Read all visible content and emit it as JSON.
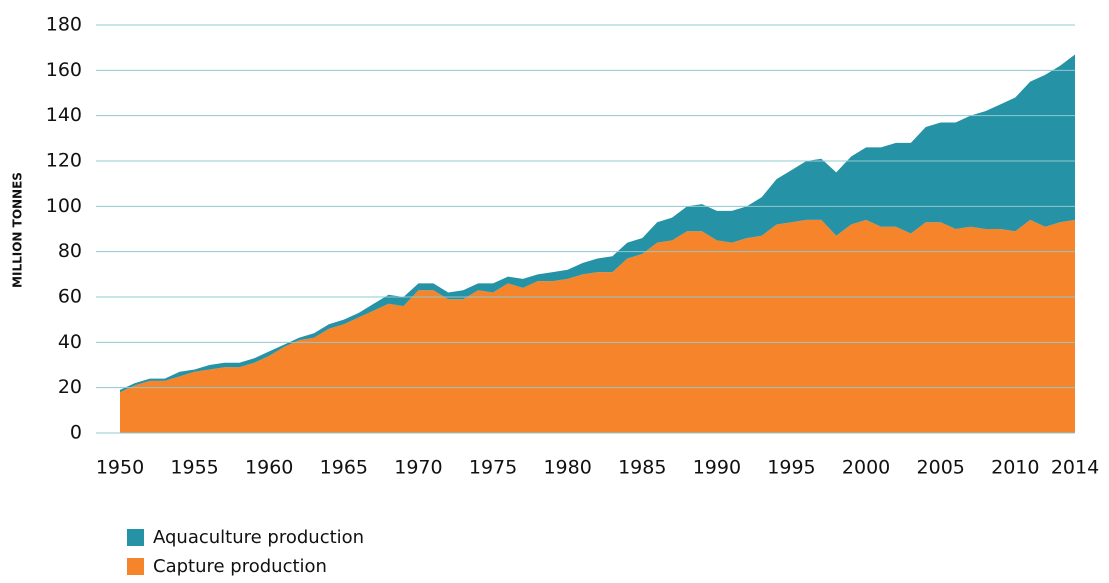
{
  "chart_data": {
    "type": "stacked_area",
    "y_label": "MILLION TONNES",
    "x": [
      1950,
      1951,
      1952,
      1953,
      1954,
      1955,
      1956,
      1957,
      1958,
      1959,
      1960,
      1961,
      1962,
      1963,
      1964,
      1965,
      1966,
      1967,
      1968,
      1969,
      1970,
      1971,
      1972,
      1973,
      1974,
      1975,
      1976,
      1977,
      1978,
      1979,
      1980,
      1981,
      1982,
      1983,
      1984,
      1985,
      1986,
      1987,
      1988,
      1989,
      1990,
      1991,
      1992,
      1993,
      1994,
      1995,
      1996,
      1997,
      1998,
      1999,
      2000,
      2001,
      2002,
      2003,
      2004,
      2005,
      2006,
      2007,
      2008,
      2009,
      2010,
      2011,
      2012,
      2013,
      2014
    ],
    "series": [
      {
        "name": "Aquaculture production",
        "color": "#2592a5",
        "values": [
          1,
          1,
          1,
          1,
          2,
          1,
          2,
          2,
          2,
          2,
          2,
          1,
          1,
          2,
          2,
          2,
          2,
          3,
          4,
          4,
          3,
          3,
          3,
          4,
          3,
          4,
          3,
          4,
          3,
          4,
          4,
          5,
          6,
          7,
          7,
          7,
          9,
          10,
          11,
          12,
          13,
          14,
          14,
          17,
          20,
          23,
          26,
          27,
          28,
          30,
          32,
          35,
          37,
          40,
          42,
          44,
          47,
          49,
          52,
          55,
          59,
          61,
          67,
          69,
          73
        ]
      },
      {
        "name": "Capture production",
        "color": "#f5842a",
        "values": [
          18,
          21,
          23,
          23,
          25,
          27,
          28,
          29,
          29,
          31,
          34,
          38,
          41,
          42,
          46,
          48,
          51,
          54,
          57,
          56,
          63,
          63,
          59,
          59,
          63,
          62,
          66,
          64,
          67,
          67,
          68,
          70,
          71,
          71,
          77,
          79,
          84,
          85,
          89,
          89,
          85,
          84,
          86,
          87,
          92,
          93,
          94,
          94,
          87,
          92,
          94,
          91,
          91,
          88,
          93,
          93,
          90,
          91,
          90,
          90,
          89,
          94,
          91,
          93,
          94
        ]
      }
    ],
    "xlim": [
      1950,
      2014
    ],
    "xticks": [
      1950,
      1955,
      1960,
      1965,
      1970,
      1975,
      1980,
      1985,
      1990,
      1995,
      2000,
      2005,
      2010,
      2014
    ],
    "ylim": [
      0,
      180
    ],
    "yticks": [
      0,
      20,
      40,
      60,
      80,
      100,
      120,
      140,
      160,
      180
    ],
    "grid": true,
    "grid_color": "#8fc9d0"
  }
}
